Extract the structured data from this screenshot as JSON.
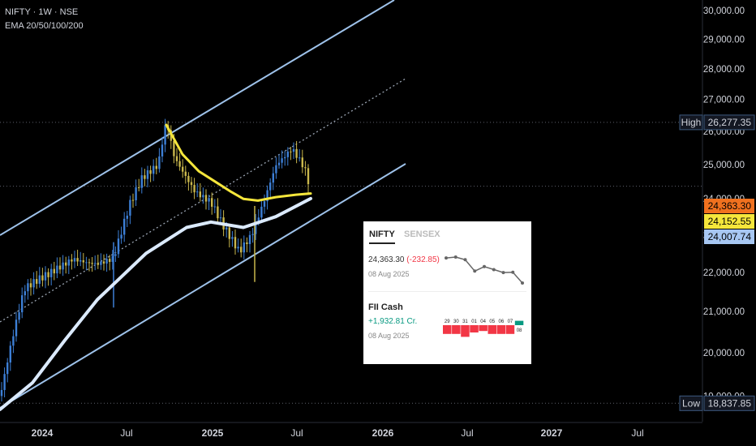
{
  "header": {
    "symbol_line": "NIFTY · 1W · NSE",
    "indicator_line": "EMA 20/50/100/200"
  },
  "chart_data": {
    "type": "candlestick",
    "title": "NIFTY · 1W · NSE",
    "x_ticks": [
      "2024",
      "Jul",
      "2025",
      "Jul",
      "2026",
      "Jul",
      "2027",
      "Jul"
    ],
    "y_ticks": [
      "30,000.00",
      "29,000.00",
      "28,000.00",
      "27,000.00",
      "26,000.00",
      "25,000.00",
      "24,000.00",
      "23,000.00",
      "22,000.00",
      "21,000.00",
      "20,000.00",
      "19,000.00"
    ],
    "ylim": [
      18300,
      30200
    ],
    "y_scale": "log",
    "price_labels": [
      {
        "text": "26,277.35",
        "tag": "High",
        "value": 26277.35,
        "color": "#131722",
        "border": "#3d5a80"
      },
      {
        "text": "24,363.30",
        "value": 24363.3,
        "color": "#f0711f"
      },
      {
        "text": "24,152.55",
        "value": 24152.55,
        "color": "#f5e63b"
      },
      {
        "text": "24,007.74",
        "value": 24007.74,
        "color": "#a7c7f2"
      },
      {
        "text": "18,837.85",
        "tag": "Low",
        "value": 18837.85,
        "color": "#131722",
        "border": "#3d5a80"
      }
    ],
    "ema_series": [
      {
        "color": "#f5e63b",
        "values_approx": [
          26200,
          25300,
          24800,
          24500,
          24200,
          24000,
          23950,
          24050,
          24120,
          24153
        ]
      },
      {
        "color": "#dbeafe",
        "values_approx": [
          18700,
          19300,
          20300,
          21300,
          22500,
          23200,
          23350,
          23200,
          23500,
          24008
        ]
      }
    ],
    "channel": {
      "upper": "rising",
      "lower": "rising",
      "mid": "dotted"
    },
    "candle_colors": {
      "up": "#3d7fd6",
      "down": "#c9b74c"
    }
  },
  "widget": {
    "tab_active": "NIFTY",
    "tab_inactive": "SENSEX",
    "price": "24,363.30",
    "change": "(-232.85)",
    "price_date": "08 Aug 2025",
    "sparkline": [
      24970,
      25000,
      24910,
      24530,
      24680,
      24580,
      24480,
      24490,
      24130
    ],
    "fii_title": "FII Cash",
    "fii_value": "+1,932.81 Cr.",
    "fii_date": "08 Aug 2025",
    "fii_bars": [
      {
        "day": "29",
        "value": -0.6
      },
      {
        "day": "30",
        "value": -0.6
      },
      {
        "day": "31",
        "value": -0.8
      },
      {
        "day": "01",
        "value": -0.5
      },
      {
        "day": "04",
        "value": -0.4
      },
      {
        "day": "05",
        "value": -0.6
      },
      {
        "day": "06",
        "value": -0.6
      },
      {
        "day": "07",
        "value": -0.6
      },
      {
        "day": "08",
        "value": 0.3
      }
    ],
    "colors": {
      "negative": "#f23645",
      "positive": "#089981",
      "change": "#f23645",
      "fii_value": "#089981"
    }
  }
}
